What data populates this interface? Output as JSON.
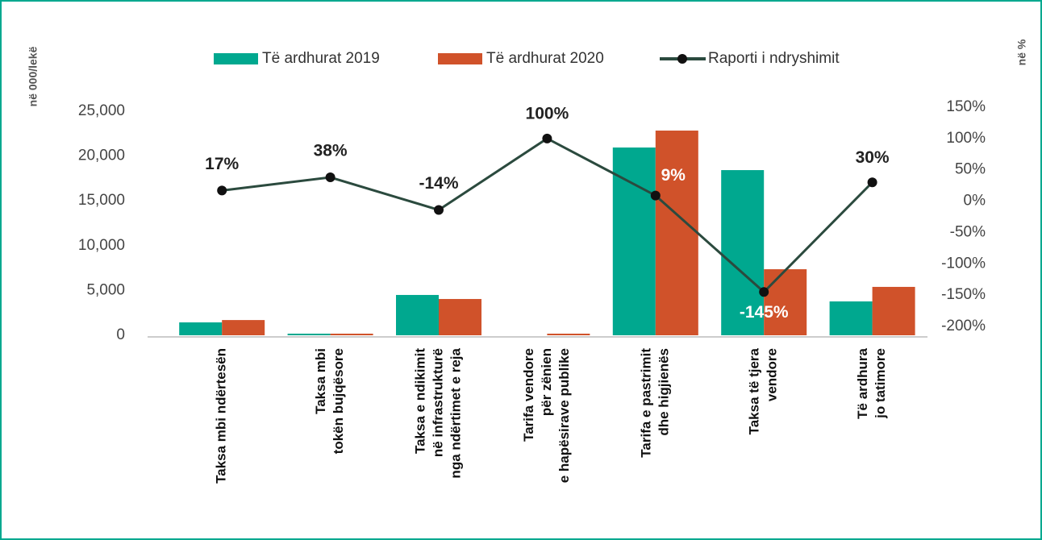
{
  "chart_data": {
    "type": "bar",
    "y_axis_label": "në 000/lekë",
    "y2_axis_label": "në %",
    "categories": [
      [
        "Taksa mbi ndërtesën"
      ],
      [
        "Taksa mbi",
        "tokën bujqësore"
      ],
      [
        "Taksa e ndikimit",
        "në infrastrukturë",
        "nga ndërtimet e reja"
      ],
      [
        "Tarifa vendore",
        "për zënien",
        "e hapësirave publike"
      ],
      [
        "Tarifa e pastrimit",
        "dhe higjienës"
      ],
      [
        "Taksa të tjera",
        "vendore"
      ],
      [
        "Të ardhura",
        "jo tatimore"
      ]
    ],
    "series": [
      {
        "name": "Të ardhurat 2019",
        "type": "bar",
        "color": "#00a88f",
        "values": [
          1440,
          180,
          4500,
          0,
          20950,
          18430,
          3780
        ]
      },
      {
        "name": "Të ardhurat 2020",
        "type": "bar",
        "color": "#d0522a",
        "values": [
          1700,
          180,
          4050,
          180,
          22840,
          7370,
          5400
        ]
      },
      {
        "name": "Raporti i ndryshimit",
        "type": "line",
        "axis": "y2",
        "color": "#2b4a3e",
        "values": [
          17,
          38,
          -14,
          100,
          9,
          -145,
          30
        ],
        "value_labels": [
          "17%",
          "38%",
          "-14%",
          "100%",
          "9%",
          "-145%",
          "30%"
        ],
        "value_label_colors": [
          "#222222",
          "#222222",
          "#222222",
          "#222222",
          "#ffffff",
          "#ffffff",
          "#222222"
        ]
      }
    ],
    "ylim": [
      0,
      25000
    ],
    "yticks": [
      0,
      {
        "value": 5000,
        "label": "5,000"
      },
      {
        "value": 10000,
        "label": "10,000"
      },
      {
        "value": 15000,
        "label": "15,000"
      },
      {
        "value": 20000,
        "label": "20,000"
      },
      {
        "value": 25000,
        "label": "25,000"
      }
    ],
    "y2lim": [
      -200,
      150
    ],
    "y2ticks": [
      {
        "value": -200,
        "label": "-200%"
      },
      {
        "value": -150,
        "label": "-150%"
      },
      {
        "value": -100,
        "label": "-100%"
      },
      {
        "value": -50,
        "label": "-50%"
      },
      {
        "value": 0,
        "label": "0%"
      },
      {
        "value": 50,
        "label": "50%"
      },
      {
        "value": 100,
        "label": "100%"
      },
      {
        "value": 150,
        "label": "150%"
      }
    ],
    "legend": "top"
  }
}
